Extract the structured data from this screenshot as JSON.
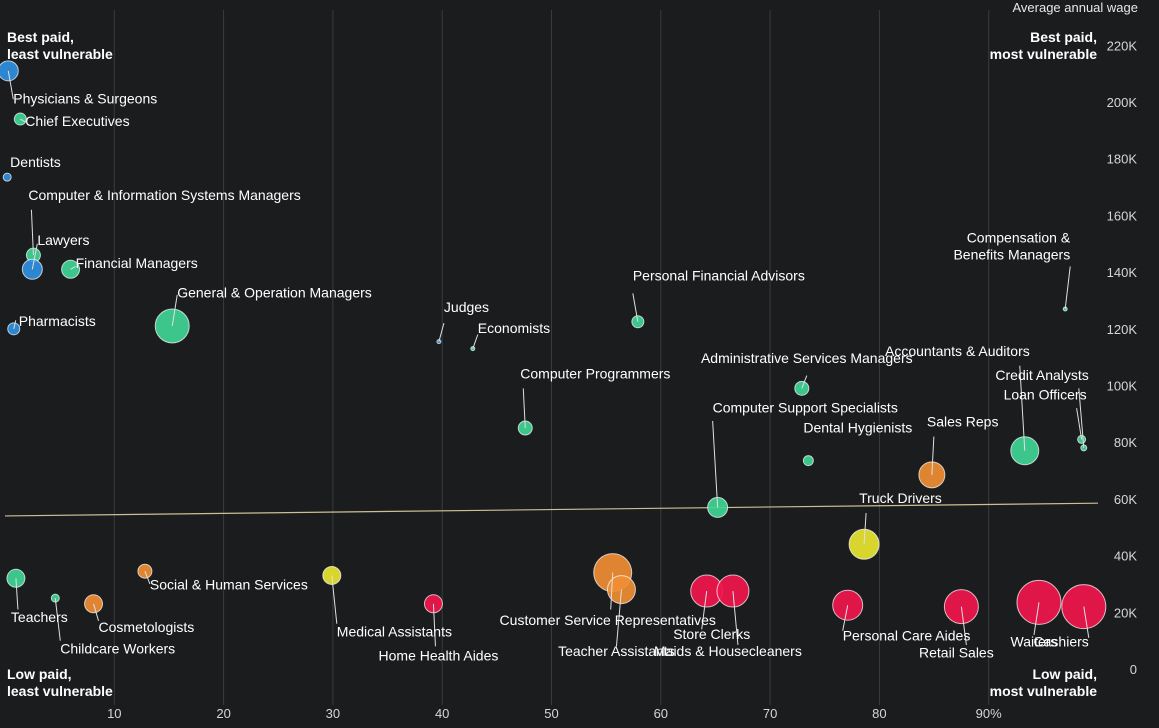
{
  "chart_data": {
    "type": "scatter",
    "title": "",
    "xlabel": "",
    "ylabel": "Average annual wage",
    "xlim": [
      0,
      100
    ],
    "ylim": [
      0,
      230000
    ],
    "x_ticks": [
      10,
      20,
      30,
      40,
      50,
      60,
      70,
      80,
      90
    ],
    "x_tick_labels": [
      "10",
      "20",
      "30",
      "40",
      "50",
      "60",
      "70",
      "80",
      "90%"
    ],
    "y_ticks": [
      0,
      20000,
      40000,
      60000,
      80000,
      100000,
      120000,
      140000,
      160000,
      180000,
      200000,
      220000
    ],
    "y_tick_labels": [
      "0",
      "20K",
      "40K",
      "60K",
      "80K",
      "100K",
      "120K",
      "140K",
      "160K",
      "180K",
      "200K",
      "220K"
    ],
    "grid": "vertical",
    "corner_labels": {
      "top_left": [
        "Best paid,",
        "least vulnerable"
      ],
      "top_right": [
        "Best paid,",
        "most vulnerable"
      ],
      "bottom_left": [
        "Low paid,",
        "least vulnerable"
      ],
      "bottom_right": [
        "Low paid,",
        "most vulnerable"
      ]
    },
    "trend_line": {
      "x": [
        0,
        100
      ],
      "y": [
        54000,
        58500
      ]
    },
    "colors": {
      "low": "#2f8fe0",
      "mid_low": "#3fd596",
      "mid": "#e8e530",
      "mid_high": "#f08e34",
      "high": "#f0164b",
      "trend": "#cdbf93"
    },
    "labeled_points": [
      {
        "name": "Physicians & Surgeons",
        "x": 0.3,
        "y": 211000,
        "size": 10,
        "color": "#2f8fe0",
        "tx": 5,
        "ty": 199500,
        "anchor": "start",
        "lx": 5,
        "ly": 201000
      },
      {
        "name": "Chief Executives",
        "x": 1.4,
        "y": 194000,
        "size": 6,
        "color": "#3fd596",
        "tx": 5,
        "ty": 191500,
        "anchor": "start",
        "lx": 5,
        "ly": 193000
      },
      {
        "name": "Dentists",
        "x": 0.2,
        "y": 173500,
        "size": 4,
        "color": "#2f8fe0",
        "tx": 3,
        "ty": 177000,
        "anchor": "start"
      },
      {
        "name": "Computer & Information Systems Managers",
        "x": 2.6,
        "y": 146000,
        "size": 7,
        "color": "#3fd596",
        "tx": -5,
        "ty": 165500,
        "anchor": "start",
        "lx": -2,
        "ly": 162000
      },
      {
        "name": "Lawyers",
        "x": 2.5,
        "y": 141000,
        "size": 10,
        "color": "#2f8fe0",
        "tx": 5,
        "ty": 149500,
        "anchor": "start",
        "lx": 5,
        "ly": 150000
      },
      {
        "name": "Financial Managers",
        "x": 6.0,
        "y": 141000,
        "size": 9,
        "color": "#3fd596",
        "tx": 5,
        "ty": 141500,
        "anchor": "start",
        "lx": 5,
        "ly": 142000
      },
      {
        "name": "General & Operation Managers",
        "x": 15.3,
        "y": 121000,
        "size": 17,
        "color": "#3fd596",
        "tx": 5,
        "ty": 131000,
        "anchor": "start",
        "lx": 5,
        "ly": 132000
      },
      {
        "name": "Pharmacists",
        "x": 0.8,
        "y": 120000,
        "size": 6,
        "color": "#2f8fe0",
        "tx": 5,
        "ty": 121000,
        "anchor": "start",
        "lx": 2,
        "ly": 123000
      },
      {
        "name": "Judges",
        "x": 39.7,
        "y": 115500,
        "size": 2,
        "color": "#2f8fe0",
        "tx": 5,
        "ty": 126000,
        "anchor": "start",
        "lx": 5,
        "ly": 122000
      },
      {
        "name": "Economists",
        "x": 42.8,
        "y": 113000,
        "size": 2,
        "color": "#3fd596",
        "tx": 5,
        "ty": 118500,
        "anchor": "start",
        "lx": 5,
        "ly": 118000
      },
      {
        "name": "Personal Financial Advisors",
        "x": 57.9,
        "y": 122500,
        "size": 6,
        "color": "#3fd596",
        "tx": -5,
        "ty": 137000,
        "anchor": "start",
        "lx": -5,
        "ly": 132500
      },
      {
        "name": "Computer Programmers",
        "x": 47.6,
        "y": 85000,
        "size": 7,
        "color": "#3fd596",
        "tx": -5,
        "ty": 102500,
        "anchor": "start",
        "lx": -2,
        "ly": 99000
      },
      {
        "name": "Administrative Services Managers",
        "x": 72.9,
        "y": 99000,
        "size": 7,
        "color": "#3fd596",
        "tx": 5,
        "ty": 108000,
        "anchor": "middle",
        "lx": 5,
        "ly": 103500
      },
      {
        "name": "Accountants & Auditors",
        "x": 93.3,
        "y": 77000,
        "size": 14,
        "color": "#3fd596",
        "tx": 5,
        "ty": 110500,
        "anchor": "end",
        "lx": -5,
        "ly": 107000
      },
      {
        "name": "Credit Analysts",
        "x": 98.7,
        "y": 78000,
        "size": 3,
        "color": "#3fd596",
        "tx": 5,
        "ty": 102000,
        "anchor": "end",
        "lx": -5,
        "ly": 99000
      },
      {
        "name": "Loan Officers",
        "x": 98.5,
        "y": 81000,
        "size": 4,
        "color": "#3fd596",
        "tx": 5,
        "ty": 95000,
        "anchor": "end",
        "lx": -5,
        "ly": 92000
      },
      {
        "name": "Compensation & Benefits Managers",
        "x": 97.0,
        "y": 127000,
        "size": 2,
        "color": "#3fd596",
        "tx": 5,
        "ty": 150500,
        "anchor": "end",
        "lx": 5,
        "ly": 142000
      },
      {
        "name": "Computer Support Specialists",
        "x": 65.2,
        "y": 57000,
        "size": 10,
        "color": "#3fd596",
        "tx": -5,
        "ty": 90500,
        "anchor": "start",
        "lx": -5,
        "ly": 87500
      },
      {
        "name": "Dental Hygienists",
        "x": 73.5,
        "y": 73500,
        "size": 5,
        "color": "#3fd596",
        "tx": -5,
        "ty": 83500,
        "anchor": "start"
      },
      {
        "name": "Sales Reps",
        "x": 84.8,
        "y": 68500,
        "size": 13,
        "color": "#f08e34",
        "tx": -5,
        "ty": 85500,
        "anchor": "start",
        "lx": 2,
        "ly": 82000
      },
      {
        "name": "Truck Drivers",
        "x": 78.6,
        "y": 44000,
        "size": 15,
        "color": "#e8e530",
        "tx": -5,
        "ty": 58500,
        "anchor": "start",
        "lx": 2,
        "ly": 55000
      },
      {
        "name": "Teachers",
        "x": 1.0,
        "y": 32000,
        "size": 9,
        "color": "#3fd596",
        "tx": -5,
        "ty": 16500,
        "anchor": "start",
        "lx": 2,
        "ly": 21000
      },
      {
        "name": "Childcare Workers",
        "x": 4.6,
        "y": 25000,
        "size": 4,
        "color": "#3fd596",
        "tx": 5,
        "ty": 5500,
        "anchor": "start",
        "lx": 5,
        "ly": 10000
      },
      {
        "name": "Cosmetologists",
        "x": 8.1,
        "y": 23000,
        "size": 9,
        "color": "#f08e34",
        "tx": 5,
        "ty": 13000,
        "anchor": "start",
        "lx": 5,
        "ly": 17000
      },
      {
        "name": "Social & Human Services",
        "x": 12.8,
        "y": 34500,
        "size": 7,
        "color": "#f08e34",
        "tx": 5,
        "ty": 28000,
        "anchor": "start",
        "lx": 5,
        "ly": 30000
      },
      {
        "name": "Medical Assistants",
        "x": 29.9,
        "y": 33000,
        "size": 9,
        "color": "#e8e530",
        "tx": 5,
        "ty": 11500,
        "anchor": "start",
        "lx": 5,
        "ly": 16000
      },
      {
        "name": "Home Health Aides",
        "x": 39.2,
        "y": 23000,
        "size": 9,
        "color": "#f0164b",
        "tx": 5,
        "ty": 3000,
        "anchor": "middle",
        "lx": 2,
        "ly": 8000
      },
      {
        "name": "Customer Service Representatives",
        "x": 55.6,
        "y": 34000,
        "size": 19,
        "color": "#f08e34",
        "tx": -5,
        "ty": 15500,
        "anchor": "middle",
        "lx": -2,
        "ly": 21000
      },
      {
        "name": "Teacher Assistants",
        "x": 56.4,
        "y": 28000,
        "size": 14,
        "color": "#f08e34",
        "tx": -5,
        "ty": 4500,
        "anchor": "middle",
        "lx": -5,
        "ly": 8000
      },
      {
        "name": "Store Clerks",
        "x": 64.2,
        "y": 27500,
        "size": 16,
        "color": "#f0164b",
        "tx": 5,
        "ty": 10500,
        "anchor": "middle",
        "lx": -5,
        "ly": 14000
      },
      {
        "name": "Maids & Housecleaners",
        "x": 66.6,
        "y": 27500,
        "size": 16,
        "color": "#f0164b",
        "tx": -5,
        "ty": 4500,
        "anchor": "middle",
        "lx": 5,
        "ly": 8500
      },
      {
        "name": "Personal Care Aides",
        "x": 77.1,
        "y": 22500,
        "size": 15,
        "color": "#f0164b",
        "tx": -5,
        "ty": 10000,
        "anchor": "start",
        "lx": -5,
        "ly": 13500
      },
      {
        "name": "Retail Sales",
        "x": 87.5,
        "y": 22000,
        "size": 17,
        "color": "#f0164b",
        "tx": -5,
        "ty": 4000,
        "anchor": "middle",
        "lx": 5,
        "ly": 8500
      },
      {
        "name": "Waiters",
        "x": 94.6,
        "y": 23500,
        "size": 22,
        "color": "#f0164b",
        "tx": -5,
        "ty": 8000,
        "anchor": "middle",
        "lx": -5,
        "ly": 12000
      },
      {
        "name": "Cashiers",
        "x": 98.7,
        "y": 22000,
        "size": 22,
        "color": "#f0164b",
        "tx": 5,
        "ty": 8000,
        "anchor": "end",
        "lx": 5,
        "ly": 11000
      }
    ]
  }
}
